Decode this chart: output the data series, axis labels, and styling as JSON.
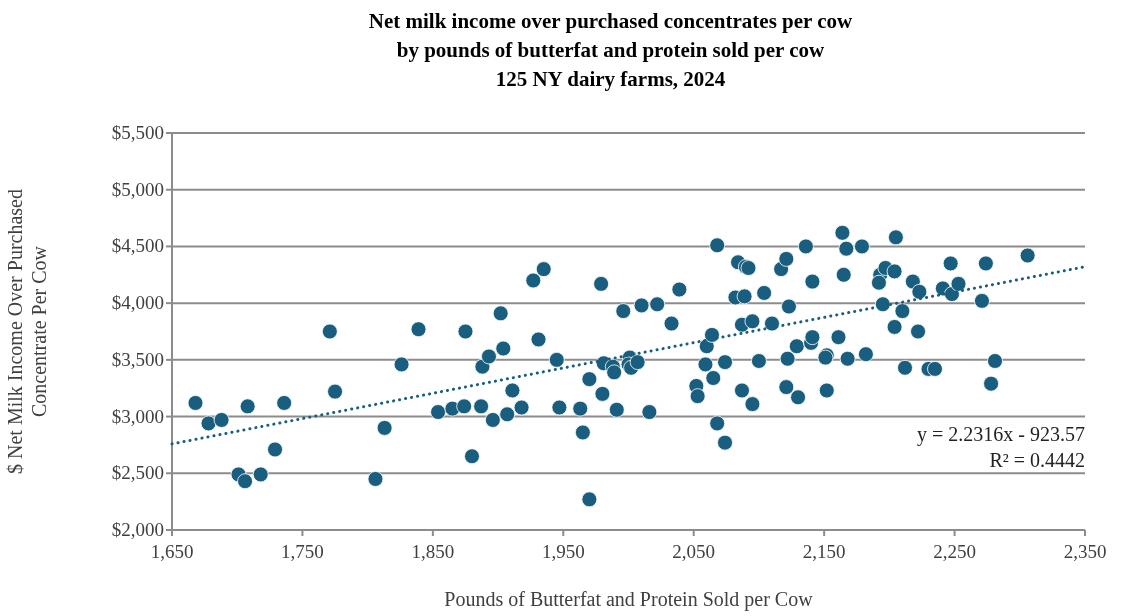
{
  "chart_data": {
    "type": "scatter",
    "title": "Net milk income over purchased concentrates per cow by pounds of butterfat and protein sold per cow",
    "subtitle": "125 NY dairy farms, 2024",
    "xlabel": "Pounds of Butterfat and Protein Sold per Cow",
    "ylabel": "$ Net Milk Income Over Purchased Concentrate Per Cow",
    "xlim": [
      1650,
      2350
    ],
    "ylim": [
      2000,
      5500
    ],
    "xticks": [
      {
        "value": 1650,
        "label": "1,650"
      },
      {
        "value": 1750,
        "label": "1,750"
      },
      {
        "value": 1850,
        "label": "1,850"
      },
      {
        "value": 1950,
        "label": "1,950"
      },
      {
        "value": 2050,
        "label": "2,050"
      },
      {
        "value": 2150,
        "label": "2,150"
      },
      {
        "value": 2250,
        "label": "2,250"
      },
      {
        "value": 2350,
        "label": "2,350"
      }
    ],
    "yticks": [
      {
        "value": 2000,
        "label": "$2,000"
      },
      {
        "value": 2500,
        "label": "$2,500"
      },
      {
        "value": 3000,
        "label": "$3,000"
      },
      {
        "value": 3500,
        "label": "$3,500"
      },
      {
        "value": 4000,
        "label": "$4,000"
      },
      {
        "value": 4500,
        "label": "$4,500"
      },
      {
        "value": 5000,
        "label": "$5,000"
      },
      {
        "value": 5500,
        "label": "$5,500"
      }
    ],
    "grid": "y",
    "series": [
      {
        "color": "#195e7f",
        "marker": "circle",
        "x": [
          1668,
          1678,
          1688,
          1701,
          1706,
          1718,
          1708,
          1729,
          1736,
          1771,
          1775,
          1806,
          1813,
          1826,
          1839,
          1854,
          1865,
          1874,
          1875,
          1880,
          1887,
          1888,
          1893,
          1896,
          1907,
          1918,
          1911,
          1902,
          1904,
          1927,
          1935,
          1931,
          1945,
          1947,
          1963,
          1965,
          1970,
          1970,
          1979,
          1980,
          1981,
          1988,
          1989,
          1991,
          1996,
          2001,
          2000,
          2002,
          2007,
          2010,
          2016,
          2022,
          2033,
          2039,
          2052,
          2053,
          2059,
          2060,
          2064,
          2065,
          2068,
          2068,
          2074,
          2074,
          2082,
          2084,
          2089,
          2090,
          2092,
          2087,
          2095,
          2087,
          2095,
          2100,
          2104,
          2110,
          2117,
          2121,
          2123,
          2122,
          2121,
          2129,
          2130,
          2136,
          2141,
          2140,
          2141,
          2152,
          2151,
          2152,
          2161,
          2168,
          2164,
          2167,
          2165,
          2179,
          2182,
          2193,
          2197,
          2204,
          2192,
          2205,
          2195,
          2204,
          2210,
          2212,
          2218,
          2223,
          2222,
          2230,
          2235,
          2241,
          2247,
          2248,
          2253,
          2271,
          2274,
          2281,
          2278,
          2306
        ],
        "values": [
          3120,
          2940,
          2970,
          2490,
          2430,
          2490,
          3090,
          2710,
          3120,
          3750,
          3220,
          2450,
          2900,
          3460,
          3770,
          3040,
          3070,
          3090,
          3750,
          2650,
          3090,
          3440,
          3530,
          2970,
          3020,
          3080,
          3230,
          3910,
          3600,
          4200,
          4300,
          3680,
          3500,
          3080,
          3070,
          2860,
          3330,
          2270,
          4170,
          3200,
          3470,
          3440,
          3390,
          3060,
          3930,
          3520,
          3460,
          3430,
          3480,
          3980,
          3040,
          3990,
          3820,
          4120,
          3270,
          3180,
          3460,
          3620,
          3720,
          3340,
          4510,
          2940,
          3480,
          2770,
          4050,
          4360,
          4060,
          4320,
          4310,
          3810,
          3840,
          3230,
          3110,
          3490,
          4090,
          3820,
          4300,
          4390,
          3970,
          3510,
          3260,
          3620,
          3170,
          4500,
          4190,
          3650,
          3700,
          3540,
          3520,
          3230,
          3700,
          3510,
          4620,
          4480,
          4250,
          4500,
          3550,
          4250,
          4310,
          4280,
          4180,
          4580,
          3990,
          3790,
          3930,
          3430,
          4190,
          4100,
          3750,
          3420,
          3420,
          4130,
          4350,
          4080,
          4170,
          4020,
          4350,
          3490,
          3290,
          4420
        ]
      },
      {
        "type": "line",
        "color": "#195e7f",
        "line_style": "dotted",
        "x": [
          1650,
          2350
        ],
        "values": [
          2759,
          4321
        ]
      }
    ],
    "annotations": [
      "y = 2.2316x - 923.57",
      "R² = 0.4442"
    ]
  }
}
